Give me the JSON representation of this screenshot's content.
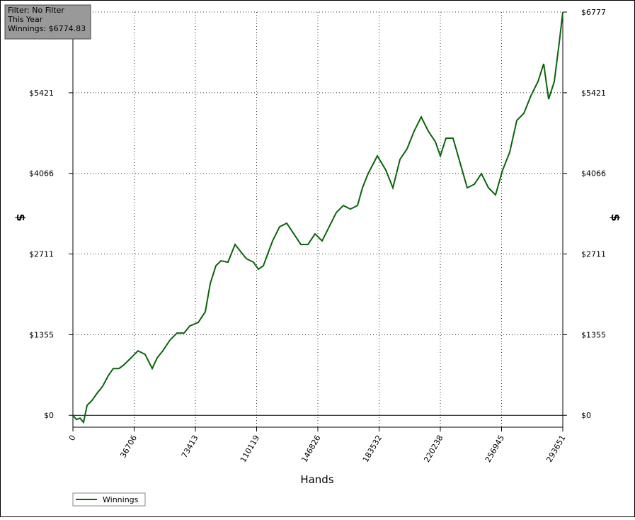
{
  "chart_data": {
    "type": "line",
    "annotations": [
      "Filter: No Filter",
      "This Year",
      "Winnings: $6774.83"
    ],
    "x_label": "Hands",
    "y_label": "$",
    "x": [
      0,
      2122,
      4243,
      6365,
      8487,
      11457,
      14428,
      17822,
      21217,
      24188,
      27582,
      30553,
      34796,
      39040,
      43283,
      45405,
      47527,
      50497,
      53892,
      58135,
      62379,
      66622,
      70017,
      75109,
      79353,
      82323,
      85718,
      88688,
      92932,
      97175,
      100570,
      103965,
      108208,
      111179,
      114149,
      119666,
      123909,
      128153,
      132396,
      136640,
      140883,
      145127,
      149370,
      153615,
      157858,
      162102,
      166345,
      170589,
      173559,
      176954,
      182470,
      187563,
      191806,
      196050,
      200293,
      204537,
      208780,
      213024,
      217267,
      220238,
      223633,
      227876,
      232120,
      236363,
      240607,
      244850,
      249094,
      253337,
      257581,
      261824,
      266068,
      270311,
      274555,
      278798,
      282193,
      285163,
      288558,
      291529,
      293651
    ],
    "series": [
      {
        "name": "Winnings",
        "color": "#0a640a",
        "values": [
          0,
          -71,
          -48,
          -119,
          167,
          250,
          369,
          488,
          667,
          786,
          786,
          846,
          965,
          1084,
          1024,
          905,
          786,
          965,
          1084,
          1262,
          1382,
          1382,
          1501,
          1560,
          1739,
          2215,
          2513,
          2596,
          2573,
          2870,
          2751,
          2632,
          2573,
          2454,
          2513,
          2930,
          3168,
          3228,
          3049,
          2870,
          2870,
          3049,
          2930,
          3168,
          3406,
          3525,
          3466,
          3525,
          3823,
          4061,
          4359,
          4121,
          3823,
          4300,
          4478,
          4776,
          5014,
          4776,
          4597,
          4359,
          4657,
          4657,
          4240,
          3823,
          3883,
          4061,
          3823,
          3704,
          4121,
          4419,
          4955,
          5074,
          5371,
          5610,
          5907,
          5312,
          5610,
          6265,
          6775
        ]
      }
    ],
    "xlim": [
      0,
      293651
    ],
    "xticks": [
      0,
      36706,
      73413,
      110119,
      146826,
      183532,
      220238,
      256945,
      293651
    ],
    "ylim": [
      -200,
      6777
    ],
    "yticks": [
      {
        "value": 0,
        "label": "$0"
      },
      {
        "value": 1355,
        "label": "$1355"
      },
      {
        "value": 2711,
        "label": "$2711"
      },
      {
        "value": 4066,
        "label": "$4066"
      },
      {
        "value": 5421,
        "label": "$5421"
      },
      {
        "value": 6777,
        "label": "$6777"
      }
    ],
    "grid": true
  }
}
